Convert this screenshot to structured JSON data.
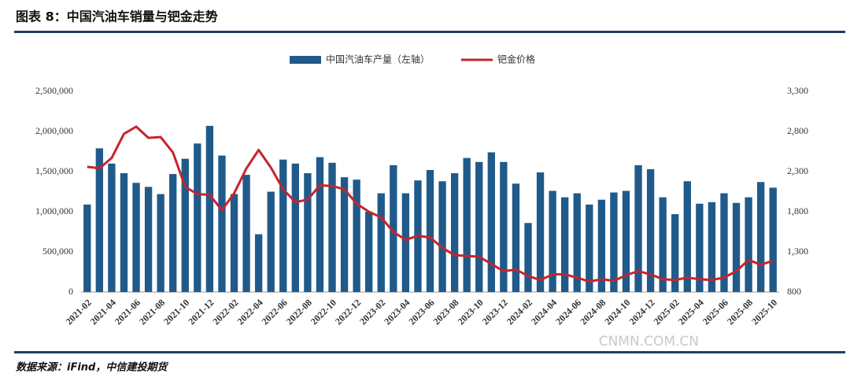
{
  "chart_data": {
    "type": "bar-line",
    "title": "图表 8：中国汽油车销量与钯金走势",
    "source": "数据来源：iFind，中信建投期货",
    "watermark": "CNMN.COM.CN",
    "categories": [
      "2021-02",
      null,
      "2021-04",
      null,
      "2021-06",
      null,
      "2021-08",
      null,
      "2021-10",
      null,
      "2021-12",
      null,
      "2022-02",
      null,
      "2022-04",
      null,
      "2022-06",
      null,
      "2022-08",
      null,
      "2022-10",
      null,
      "2022-12",
      null,
      "2023-02",
      null,
      "2023-04",
      null,
      "2023-06",
      null,
      "2023-08",
      null,
      "2023-10",
      null,
      "2023-12",
      null,
      "2024-02",
      null,
      "2024-04",
      null,
      "2024-06",
      null,
      "2024-08",
      null,
      "2024-10",
      null,
      "2024-12",
      null,
      "2025-02",
      null,
      "2025-04",
      null,
      "2025-06",
      null,
      "2025-08",
      null,
      "2025-10"
    ],
    "series": [
      {
        "name": "中国汽油车产量（左轴）",
        "type": "bar",
        "color": "#1f5a8a",
        "values": [
          1090000,
          1790000,
          1600000,
          1480000,
          1360000,
          1310000,
          1220000,
          1470000,
          1660000,
          1850000,
          2070000,
          1700000,
          1220000,
          1460000,
          720000,
          1250000,
          1650000,
          1600000,
          1480000,
          1680000,
          1610000,
          1430000,
          1400000,
          1000000,
          1230000,
          1580000,
          1230000,
          1390000,
          1520000,
          1380000,
          1480000,
          1670000,
          1620000,
          1740000,
          1620000,
          1350000,
          860000,
          1490000,
          1260000,
          1180000,
          1230000,
          1090000,
          1150000,
          1240000,
          1260000,
          1580000,
          1530000,
          1180000,
          970000,
          1380000,
          1100000,
          1120000,
          1230000,
          1110000,
          1180000,
          1370000,
          1300000
        ]
      },
      {
        "name": "钯金价格",
        "type": "line",
        "axis": "y2",
        "color": "#c8232c",
        "values": [
          2360,
          2340,
          2470,
          2770,
          2860,
          2720,
          2730,
          2540,
          2110,
          2020,
          2010,
          1820,
          2030,
          2340,
          2570,
          2350,
          2080,
          1920,
          1950,
          2130,
          2120,
          2080,
          1900,
          1800,
          1730,
          1550,
          1450,
          1500,
          1480,
          1350,
          1260,
          1250,
          1240,
          1150,
          1060,
          1080,
          1000,
          950,
          1020,
          1020,
          980,
          930,
          960,
          940,
          1010,
          1060,
          1020,
          960,
          950,
          980,
          960,
          950,
          980,
          1060,
          1200,
          1140,
          1190
        ]
      }
    ],
    "ylim": [
      0,
      2500000
    ],
    "yticks": [
      0,
      {
        "value": 500000,
        "label": "500,000"
      },
      {
        "value": 1000000,
        "label": "1,000,000"
      },
      {
        "value": 1500000,
        "label": "1,500,000"
      },
      {
        "value": 2000000,
        "label": "2,000,000"
      },
      {
        "value": 2500000,
        "label": "2,500,000"
      }
    ],
    "y2lim": [
      800,
      3300
    ],
    "y2ticks": [
      800,
      {
        "value": 1300,
        "label": "1,300"
      },
      {
        "value": 1800,
        "label": "1,800"
      },
      {
        "value": 2300,
        "label": "2,300"
      },
      {
        "value": 2800,
        "label": "2,800"
      },
      {
        "value": 3300,
        "label": "3,300"
      }
    ],
    "grid": false,
    "legend": "top"
  }
}
